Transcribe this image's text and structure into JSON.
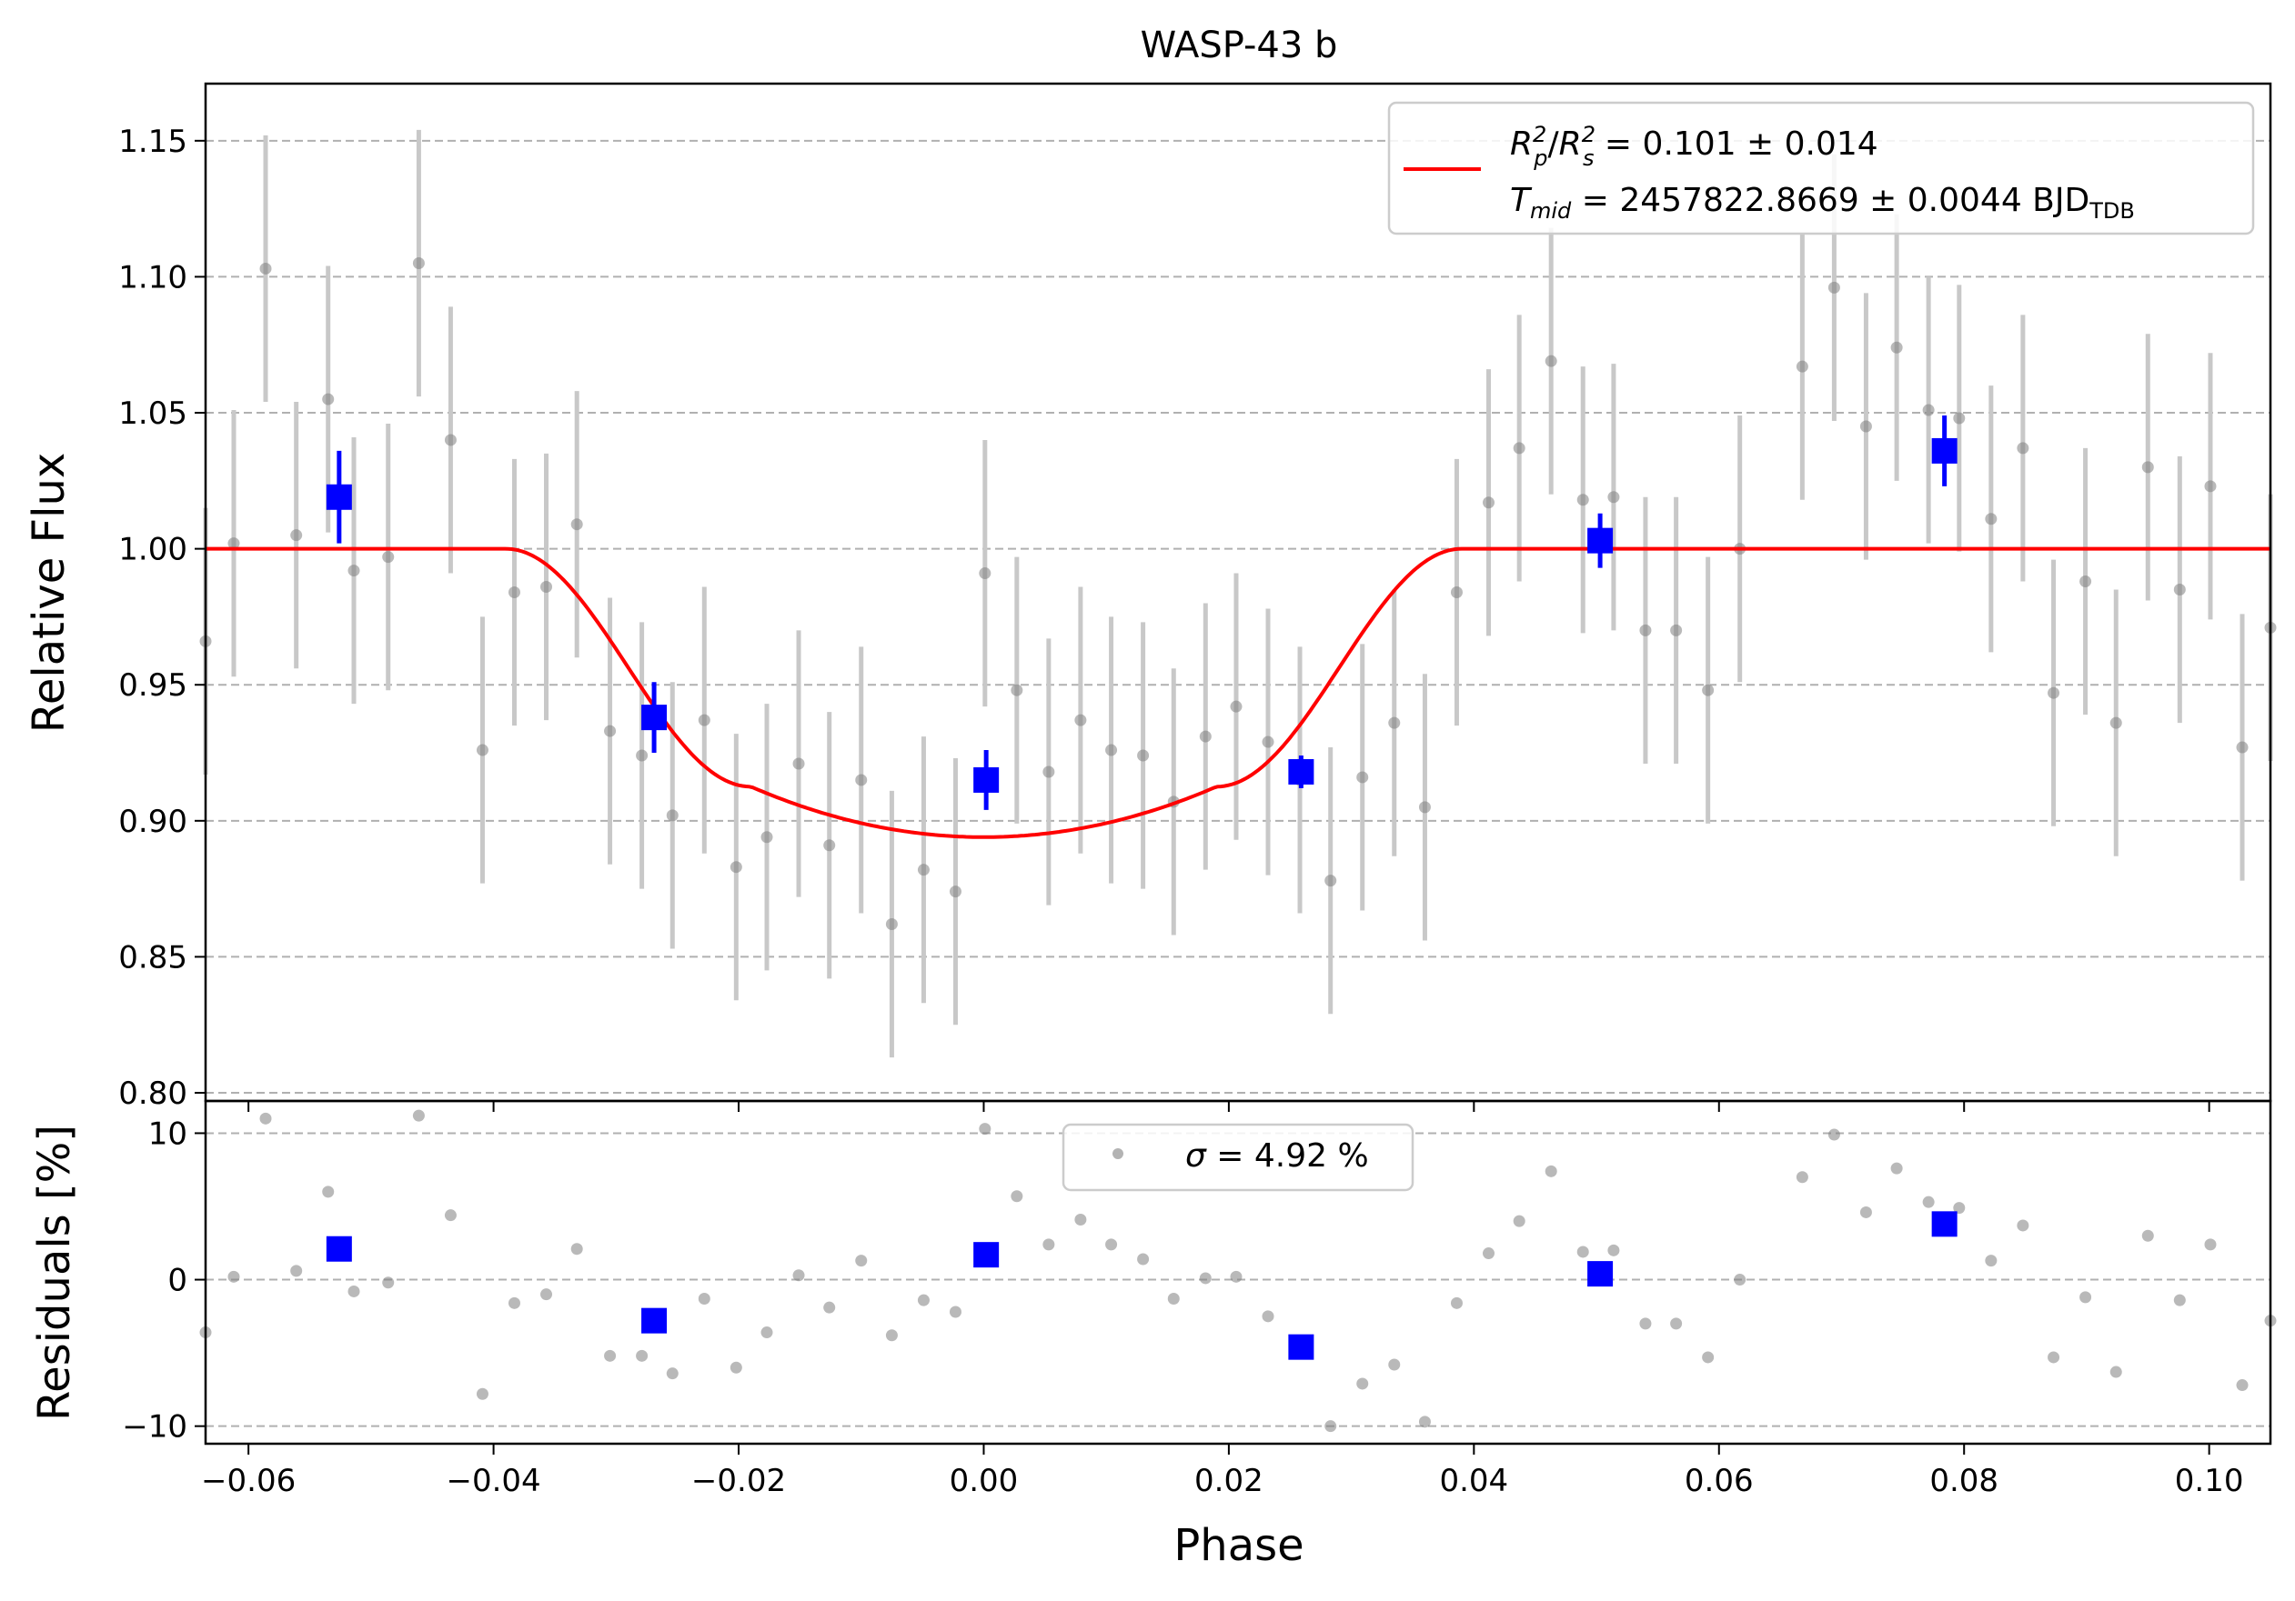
{
  "chart_data": [
    {
      "type": "scatter",
      "title": "WASP-43 b",
      "xlabel": "",
      "ylabel": "Relative Flux",
      "xlim": [
        -0.0635,
        0.105
      ],
      "ylim": [
        0.797,
        1.171
      ],
      "grid": "horizontal-dashed",
      "legend_placement": "upper right",
      "x_tick_values": [
        -0.06,
        -0.04,
        -0.02,
        0.0,
        0.02,
        0.04,
        0.06,
        0.08,
        0.1
      ],
      "y_tick_values": [
        0.8,
        0.85,
        0.9,
        0.95,
        1.0,
        1.05,
        1.1,
        1.15
      ],
      "y_tick_labels": [
        "0.80",
        "0.85",
        "0.90",
        "0.95",
        "1.00",
        "1.05",
        "1.10",
        "1.15"
      ],
      "legend": {
        "line1": {
          "ratio": "R₂⁰/R₂",
          "value": " = 0.101 ± 0.014"
        },
        "line2": {
          "label": "T",
          "sub": "mid",
          "value": " = 2457822.8669 ± 0.0044 BJD",
          "unit_sub": "TDB"
        }
      },
      "model": {
        "name": "model",
        "color": "#ff0000",
        "baseline": 1.0,
        "depth_min": 0.894,
        "t1": -0.039,
        "t2": -0.019,
        "t3": 0.019,
        "t4": 0.039
      },
      "raw_points": {
        "color": "#808080",
        "errorbar_color": "#c8c8c8",
        "error": 0.049,
        "x": [
          -0.0635,
          -0.0612,
          -0.0586,
          -0.0561,
          -0.0535,
          -0.0514,
          -0.0486,
          -0.0461,
          -0.0435,
          -0.0409,
          -0.0383,
          -0.0357,
          -0.0332,
          -0.0305,
          -0.0279,
          -0.0254,
          -0.0228,
          -0.0202,
          -0.0177,
          -0.0151,
          -0.0126,
          -0.01,
          -0.0075,
          -0.0049,
          -0.0023,
          0.0001,
          0.0027,
          0.0053,
          0.0079,
          0.0104,
          0.013,
          0.0155,
          0.0181,
          0.0206,
          0.0232,
          0.0258,
          0.0283,
          0.0309,
          0.0335,
          0.036,
          0.0386,
          0.0412,
          0.0437,
          0.0463,
          0.0489,
          0.0514,
          0.054,
          0.0565,
          0.0591,
          0.0617,
          0.0668,
          0.0694,
          0.072,
          0.0745,
          0.0771,
          0.0796,
          0.0822,
          0.0848,
          0.0873,
          0.0899,
          0.0924,
          0.095,
          0.0976,
          0.1001,
          0.1027,
          0.105
        ],
        "y": [
          0.966,
          1.002,
          1.103,
          1.005,
          1.055,
          0.992,
          0.997,
          1.105,
          1.04,
          0.926,
          0.984,
          0.986,
          1.009,
          0.933,
          0.924,
          0.902,
          0.937,
          0.883,
          0.894,
          0.921,
          0.891,
          0.915,
          0.862,
          0.882,
          0.874,
          0.991,
          0.948,
          0.918,
          0.937,
          0.926,
          0.924,
          0.907,
          0.931,
          0.942,
          0.929,
          0.915,
          0.878,
          0.916,
          0.936,
          0.905,
          0.984,
          1.017,
          1.037,
          1.069,
          1.018,
          1.019,
          0.97,
          0.97,
          0.948,
          1.0,
          1.067,
          1.096,
          1.045,
          1.074,
          1.051,
          1.048,
          1.011,
          1.037,
          0.947,
          0.988,
          0.936,
          1.03,
          0.985,
          1.023,
          0.927,
          0.971
        ]
      },
      "binned_points": {
        "color": "#0000ff",
        "x": [
          -0.0526,
          -0.0269,
          0.0002,
          0.0259,
          0.0503,
          0.0784
        ],
        "y": [
          1.019,
          0.938,
          0.915,
          0.918,
          1.003,
          1.036
        ],
        "err": [
          0.017,
          0.013,
          0.011,
          0.006,
          0.01,
          0.013
        ]
      }
    },
    {
      "type": "scatter",
      "title": "",
      "xlabel": "Phase",
      "ylabel": "Residuals [%]",
      "xlim": [
        -0.0635,
        0.105
      ],
      "ylim": [
        -11.2,
        12.2
      ],
      "grid": "horizontal-dashed",
      "legend_placement": "upper center",
      "x_tick_values": [
        -0.06,
        -0.04,
        -0.02,
        0.0,
        0.02,
        0.04,
        0.06,
        0.08,
        0.1
      ],
      "x_tick_labels": [
        "−0.06",
        "−0.04",
        "−0.02",
        "0.00",
        "0.02",
        "0.04",
        "0.06",
        "0.08",
        "0.10"
      ],
      "y_tick_values": [
        -10,
        0,
        10
      ],
      "y_tick_labels": [
        "−10",
        "0",
        "10"
      ],
      "legend": {
        "sigma_symbol": "σ",
        "sigma_text": " = 4.92 %"
      },
      "raw_points": {
        "color": "#808080",
        "y": [
          -3.6,
          0.2,
          11.0,
          0.6,
          6.0,
          -0.8,
          -0.2,
          11.2,
          4.4,
          -7.8,
          -1.6,
          -1.0,
          2.1,
          -5.2,
          -5.2,
          -6.4,
          -1.3,
          -6.0,
          -3.6,
          0.3,
          -1.9,
          1.3,
          -3.8,
          -1.4,
          -2.2,
          10.3,
          5.7,
          2.4,
          4.1,
          2.4,
          1.4,
          -1.3,
          0.1,
          0.2,
          -2.5,
          -5.0,
          -10.0,
          -7.1,
          -5.8,
          -9.7,
          -1.6,
          1.8,
          4.0,
          7.4,
          1.9,
          2.0,
          -3.0,
          -3.0,
          -5.3,
          0.0,
          7.0,
          9.9,
          4.6,
          7.6,
          5.3,
          4.9,
          1.3,
          3.7,
          -5.3,
          -1.2,
          -6.3,
          3.0,
          -1.4,
          2.4,
          -7.2,
          -2.8
        ]
      },
      "binned_points": {
        "color": "#0000ff",
        "y": [
          2.1,
          -2.8,
          1.7,
          -4.6,
          0.4,
          3.8
        ]
      }
    }
  ]
}
